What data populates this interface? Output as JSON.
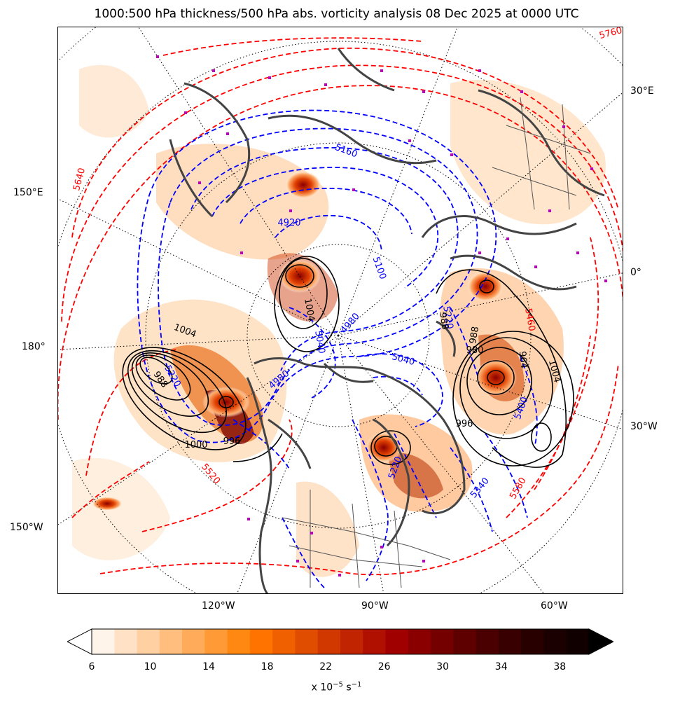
{
  "title": "1000:500 hPa thickness/500 hPa abs. vorticity analysis 08 Dec 2025 at 0000 UTC",
  "longitude_labels": {
    "e30": "30°E",
    "e150": "150°E",
    "zero": "0°",
    "d180": "180°",
    "w30": "30°W",
    "w150": "150°W",
    "w120": "120°W",
    "w90": "90°W",
    "w60": "60°W"
  },
  "thickness_labels_cold": [
    "5160",
    "4920",
    "5100",
    "5040",
    "4980",
    "5040",
    "4980",
    "5220",
    "5340",
    "5400",
    "5220",
    "5220"
  ],
  "thickness_labels_warm": [
    "5640",
    "5520",
    "5580",
    "5760",
    "5460"
  ],
  "mslp_labels": [
    "1004",
    "1004",
    "1000",
    "996",
    "988",
    "980",
    "964",
    "1004",
    "996",
    "988",
    "988"
  ],
  "colorbar": {
    "ticks": [
      "6",
      "10",
      "14",
      "18",
      "22",
      "26",
      "30",
      "34",
      "38"
    ],
    "label_prefix": "x 10",
    "label_exp1": "−5",
    "label_mid": " s",
    "label_exp2": "−1"
  },
  "colors": {
    "cold_contour": "#0000ff",
    "warm_contour": "#ff0000",
    "pressure_contour": "#000000",
    "coastline": "#444444",
    "marker": "#c000c0"
  }
}
